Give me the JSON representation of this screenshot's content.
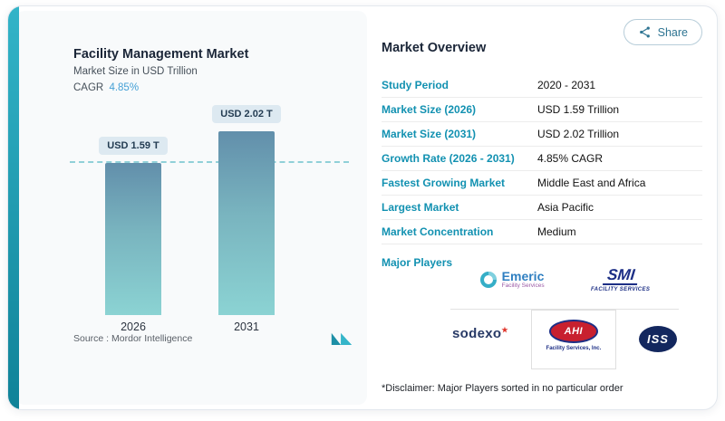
{
  "share": {
    "label": "Share"
  },
  "chart_card": {
    "title": "Facility Management Market",
    "subtitle": "Market Size in USD Trillion",
    "cagr_label": "CAGR",
    "cagr_value": "4.85%",
    "source_label": "Source :  Mordor Intelligence"
  },
  "chart_data": {
    "type": "bar",
    "title": "Facility Management Market",
    "ylabel": "Market Size in USD Trillion",
    "categories": [
      "2026",
      "2031"
    ],
    "values": [
      1.59,
      2.02
    ],
    "bar_labels": [
      "USD 1.59 T",
      "USD 2.02 T"
    ],
    "ylim": [
      0,
      2.2
    ],
    "reference_line": 1.59,
    "grid": false,
    "legend": "none",
    "colors": {
      "bar_top": "#628fab",
      "bar_bottom": "#8bd3d3",
      "reference_dash": "#77c6d0"
    }
  },
  "overview": {
    "title": "Market Overview",
    "rows": [
      {
        "label": "Study Period",
        "value": "2020 - 2031"
      },
      {
        "label": "Market Size (2026)",
        "value": "USD 1.59 Trillion"
      },
      {
        "label": "Market Size (2031)",
        "value": "USD 2.02 Trillion"
      },
      {
        "label": "Growth Rate (2026 - 2031)",
        "value": "4.85% CAGR"
      },
      {
        "label": "Fastest Growing Market",
        "value": "Middle East and Africa"
      },
      {
        "label": "Largest Market",
        "value": "Asia Pacific"
      },
      {
        "label": "Market Concentration",
        "value": "Medium"
      }
    ],
    "major_players_label": "Major Players",
    "disclaimer": "*Disclaimer: Major Players sorted in no particular order"
  },
  "logos": {
    "emeric": {
      "name": "Emeric",
      "tag": "Facility Services"
    },
    "smi": {
      "name": "SMI",
      "tag": "FACILITY SERVICES"
    },
    "sodexo": {
      "name": "sodexo",
      "star": "★"
    },
    "ahi": {
      "name": "AHI",
      "tag": "Facility Services, Inc."
    },
    "iss": {
      "name": "ISS"
    }
  },
  "colors": {
    "accent_teal": "#1a9ab0",
    "table_label": "#1291b1",
    "heading": "#1b2638",
    "cagr_blue": "#44a0d6",
    "chip_bg": "#dde9f1"
  }
}
